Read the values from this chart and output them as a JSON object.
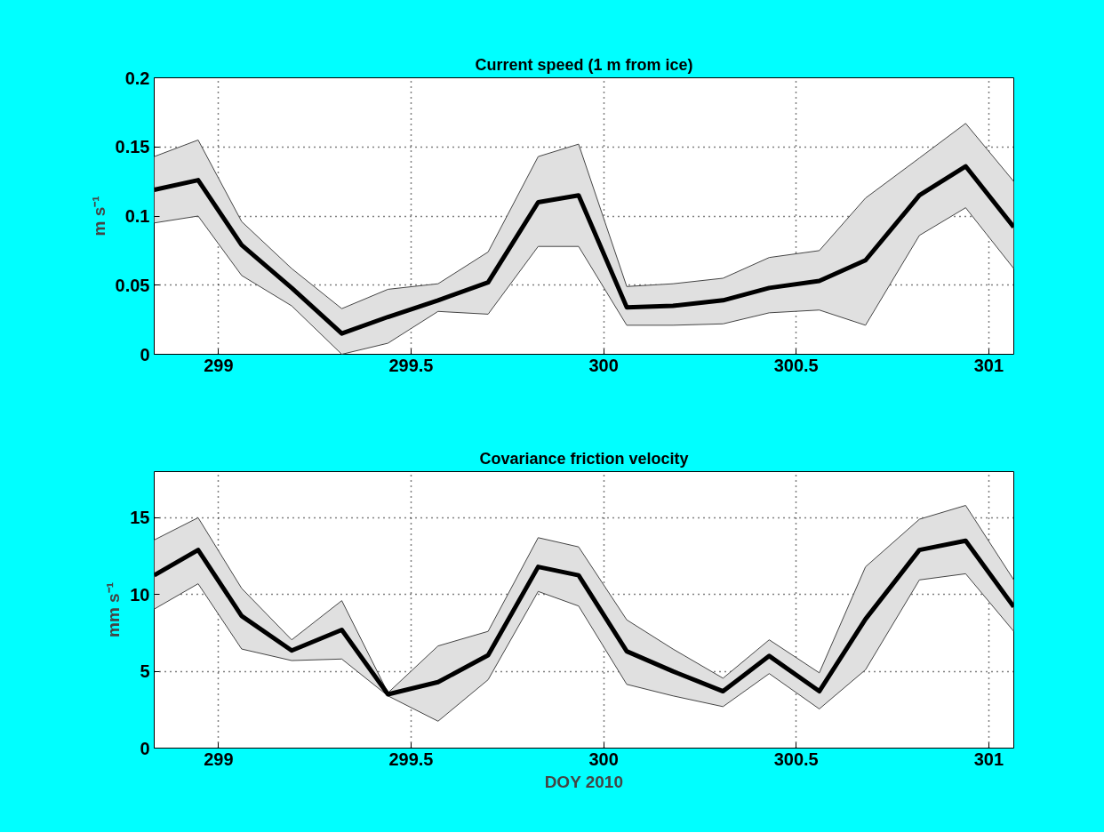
{
  "chart_data": [
    {
      "type": "line",
      "title": "Current speed (1 m from ice)",
      "ylabel": "m s⁻¹",
      "x": [
        298.833,
        298.947,
        299.06,
        299.19,
        299.32,
        299.44,
        299.57,
        299.7,
        299.83,
        299.935,
        300.06,
        300.18,
        300.31,
        300.43,
        300.56,
        300.68,
        300.82,
        300.94,
        301.065
      ],
      "series": [
        {
          "color": "#000000",
          "values": [
            0.119,
            0.126,
            0.079,
            0.048,
            0.015,
            0.027,
            0.039,
            0.052,
            0.11,
            0.115,
            0.034,
            0.035,
            0.039,
            0.048,
            0.053,
            0.068,
            0.115,
            0.136,
            0.092
          ],
          "upper": [
            0.143,
            0.155,
            0.096,
            0.062,
            0.033,
            0.047,
            0.051,
            0.074,
            0.143,
            0.152,
            0.049,
            0.051,
            0.055,
            0.07,
            0.075,
            0.113,
            0.142,
            0.167,
            0.125
          ],
          "lower": [
            0.095,
            0.1,
            0.057,
            0.035,
            0,
            0.008,
            0.031,
            0.029,
            0.078,
            0.078,
            0.021,
            0.021,
            0.022,
            0.03,
            0.032,
            0.021,
            0.086,
            0.106,
            0.062
          ]
        }
      ],
      "xlim": [
        298.833,
        301.065
      ],
      "xticks": [
        299,
        299.5,
        300,
        300.5,
        301
      ],
      "ylim": [
        0,
        0.2
      ],
      "yticks": [
        0,
        0.05,
        0.1,
        0.15,
        0.2
      ],
      "grid": true,
      "line_style": "solid",
      "marker": "none"
    },
    {
      "type": "line",
      "title": "Covariance friction velocity",
      "ylabel": "mm s⁻¹",
      "xlabel": "DOY 2010",
      "x": [
        298.833,
        298.947,
        299.06,
        299.19,
        299.32,
        299.44,
        299.57,
        299.7,
        299.83,
        299.935,
        300.06,
        300.18,
        300.31,
        300.43,
        300.56,
        300.68,
        300.82,
        300.94,
        301.065
      ],
      "series": [
        {
          "color": "#000000",
          "values": [
            11.25,
            12.9,
            8.6,
            6.35,
            7.7,
            3.5,
            4.3,
            6.05,
            11.8,
            11.25,
            6.3,
            5.0,
            3.7,
            6.0,
            3.7,
            8.4,
            12.9,
            13.5,
            9.2
          ],
          "upper": [
            13.55,
            15.0,
            10.4,
            7.05,
            9.6,
            3.6,
            6.65,
            7.6,
            13.7,
            13.1,
            8.35,
            6.45,
            4.55,
            7.05,
            4.9,
            11.8,
            14.9,
            15.8,
            10.95
          ],
          "lower": [
            9.05,
            10.7,
            6.45,
            5.7,
            5.8,
            3.4,
            1.75,
            4.45,
            10.2,
            9.25,
            4.15,
            3.4,
            2.7,
            4.85,
            2.55,
            5.1,
            10.95,
            11.35,
            7.6
          ]
        }
      ],
      "xlim": [
        298.833,
        301.065
      ],
      "xticks": [
        299,
        299.5,
        300,
        300.5,
        301
      ],
      "ylim": [
        0,
        18
      ],
      "yticks": [
        0,
        5,
        10,
        15
      ],
      "grid": true,
      "line_style": "solid",
      "marker": "none"
    }
  ]
}
